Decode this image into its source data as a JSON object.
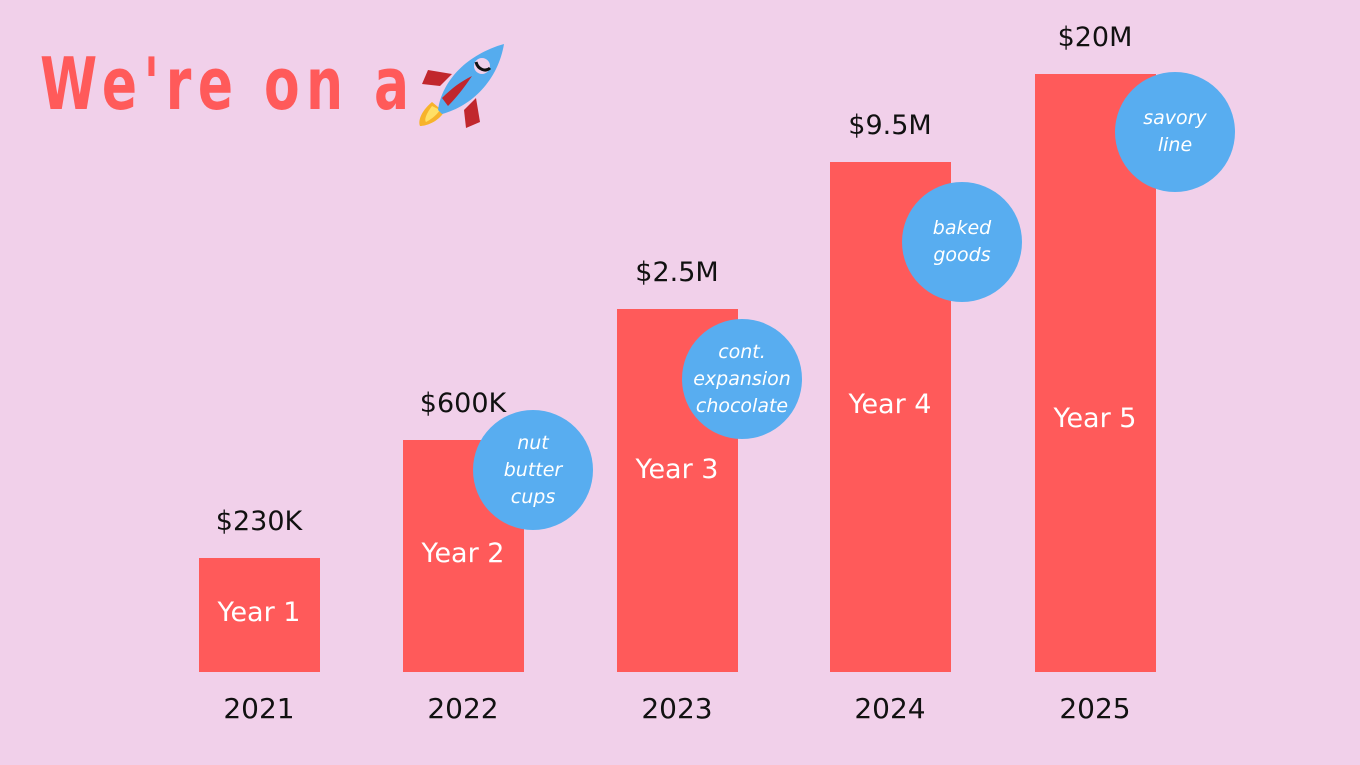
{
  "title": "We're on a",
  "rocket_icon": "rocket-icon",
  "colors": {
    "background": "#f1d0ea",
    "bar": "#ff5a5a",
    "bubble": "#58adf0",
    "title": "#ff5a5a"
  },
  "chart_data": {
    "type": "bar",
    "categories": [
      "2021",
      "2022",
      "2023",
      "2024",
      "2025"
    ],
    "values": [
      0.23,
      0.6,
      2.5,
      9.5,
      20
    ],
    "unit": "$M",
    "value_labels": [
      "$230K",
      "$600K",
      "$2.5M",
      "$9.5M",
      "$20M"
    ],
    "bar_labels": [
      "Year 1",
      "Year 2",
      "Year 3",
      "Year 4",
      "Year 5"
    ],
    "annotations": [
      "",
      "nut\nbutter\ncups",
      "cont.\nexpansion\nchocolate",
      "baked\ngoods",
      "savory\nline"
    ]
  }
}
